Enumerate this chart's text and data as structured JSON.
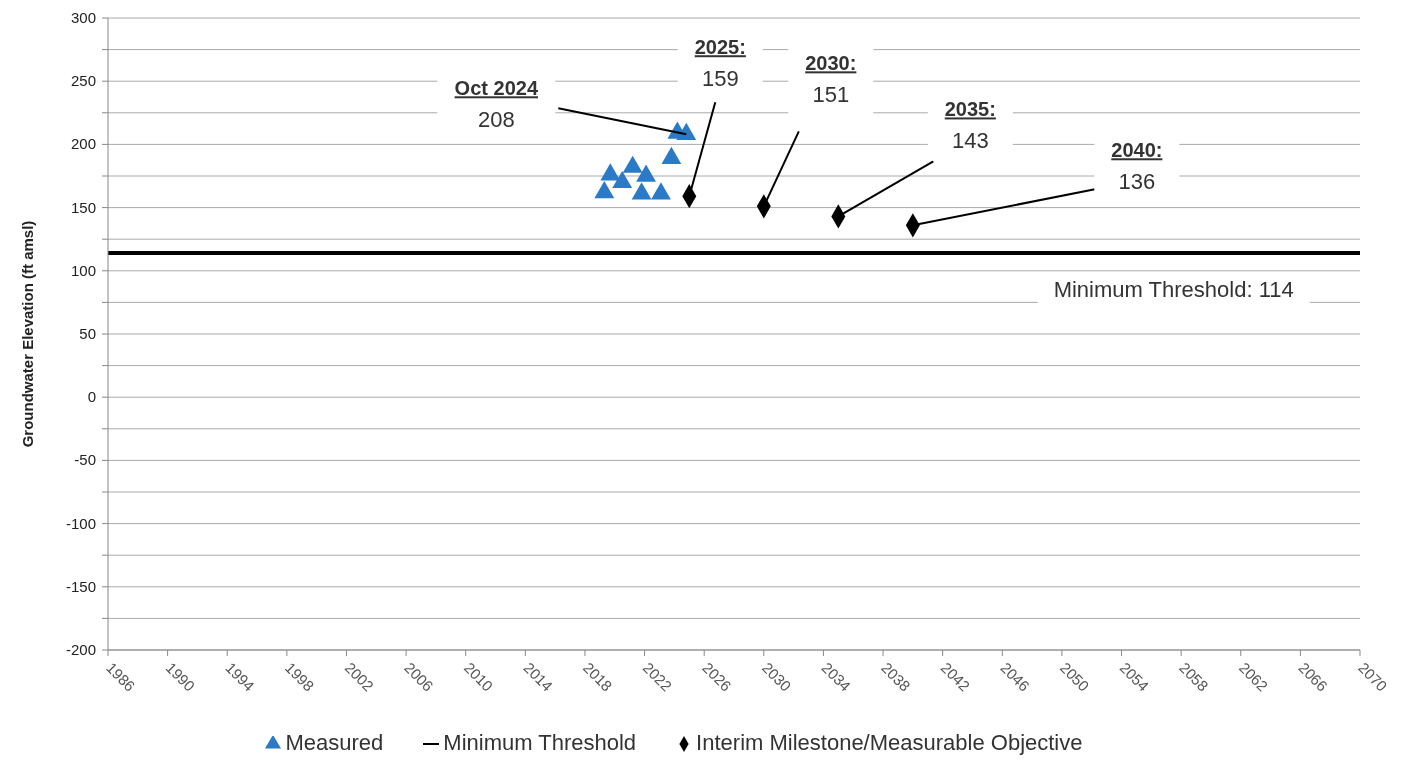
{
  "chart_data": {
    "type": "scatter",
    "ylabel": "Groundwater Elevation (ft amsl)",
    "xlim": [
      1986,
      2070
    ],
    "xticks": [
      1986,
      1990,
      1994,
      1998,
      2002,
      2006,
      2010,
      2014,
      2018,
      2022,
      2026,
      2030,
      2034,
      2038,
      2042,
      2046,
      2050,
      2054,
      2058,
      2062,
      2066,
      2070
    ],
    "ylim": [
      -200,
      300
    ],
    "yticks": [
      -200,
      {
        "value": -175,
        "label": null
      },
      -150,
      {
        "value": -125,
        "label": null
      },
      -100,
      {
        "value": -75,
        "label": null
      },
      -50,
      {
        "value": -25,
        "label": null
      },
      0,
      {
        "value": 25,
        "label": null
      },
      50,
      {
        "value": 75,
        "label": null
      },
      100,
      {
        "value": 125,
        "label": null
      },
      150,
      {
        "value": 175,
        "label": null
      },
      200,
      {
        "value": 225,
        "label": null
      },
      250,
      {
        "value": 275,
        "label": null
      },
      300
    ],
    "grid": "y",
    "legend": "bottom",
    "series": [
      {
        "name": "Measured",
        "marker": "triangle",
        "color": "#2a7ac7",
        "x": [
          2019.3,
          2019.7,
          2020.5,
          2021.2,
          2021.8,
          2022.1,
          2023.1,
          2023.8,
          2024.2,
          2024.8
        ],
        "values": [
          162,
          176,
          170,
          182,
          161,
          175,
          161,
          189,
          209,
          208
        ]
      },
      {
        "name": "Minimum Threshold",
        "type": "line",
        "marker": "none",
        "color": "#000000",
        "x": [
          1986,
          2070
        ],
        "values": [
          114,
          114
        ]
      },
      {
        "name": "Interim Milestone/Measurable Objective",
        "marker": "diamond",
        "color": "#000000",
        "x": [
          2025,
          2030,
          2035,
          2040
        ],
        "values": [
          159,
          151,
          143,
          136
        ]
      }
    ],
    "annotations": [
      {
        "text": "Oct 2024\n208",
        "x": 2024.8,
        "y": 208
      },
      {
        "text": "2025:\n159",
        "x": 2025,
        "y": 159
      },
      {
        "text": "2030:\n151",
        "x": 2030,
        "y": 151
      },
      {
        "text": "2035:\n143",
        "x": 2035,
        "y": 143
      },
      {
        "text": "2040:\n136",
        "x": 2040,
        "y": 136
      },
      {
        "text": "Minimum Threshold: 114",
        "x": 2057.5,
        "y": 114
      }
    ]
  }
}
